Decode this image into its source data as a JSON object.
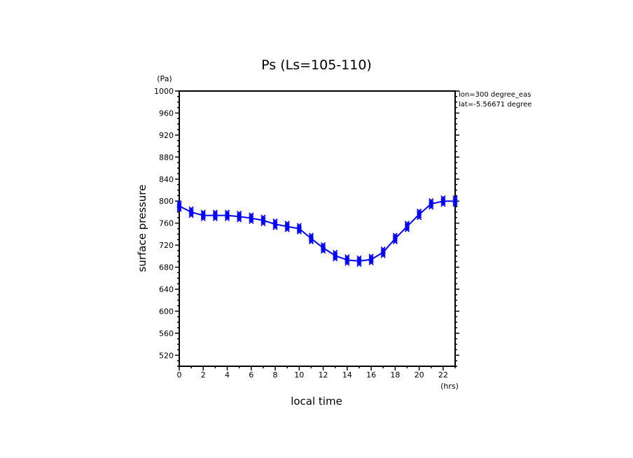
{
  "chart_data": {
    "type": "line",
    "title": "Ps (Ls=105-110)",
    "xlabel": "local time",
    "ylabel": "surface pressure",
    "x_unit": "(hrs)",
    "y_unit": "(Pa)",
    "xlim": [
      0,
      23
    ],
    "ylim": [
      500,
      1000
    ],
    "xticks": [
      0,
      2,
      4,
      6,
      8,
      10,
      12,
      14,
      16,
      18,
      20,
      22
    ],
    "yticks": [
      520,
      560,
      600,
      640,
      680,
      720,
      760,
      800,
      840,
      880,
      920,
      960,
      1000
    ],
    "annotations": [
      "lon=300 degree_eas",
      "lat=-5.56671 degree"
    ],
    "series": [
      {
        "name": "Ps",
        "color": "#0000ff",
        "x": [
          0,
          1,
          2,
          3,
          4,
          5,
          6,
          7,
          8,
          9,
          10,
          11,
          12,
          13,
          14,
          15,
          16,
          17,
          18,
          19,
          20,
          21,
          22,
          23
        ],
        "values": [
          791,
          780,
          774,
          774,
          774,
          772,
          769,
          765,
          758,
          754,
          750,
          732,
          715,
          701,
          693,
          691,
          694,
          707,
          732,
          754,
          776,
          795,
          800,
          800
        ]
      }
    ]
  }
}
